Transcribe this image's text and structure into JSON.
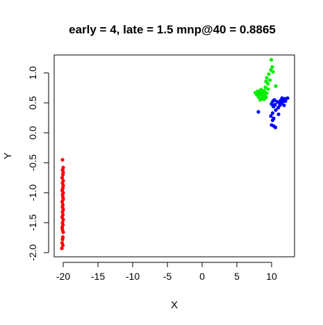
{
  "chart_data": {
    "type": "scatter",
    "title": "early = 4, late = 1.5 mnp@40 = 0.8865",
    "xlabel": "X",
    "ylabel": "Y",
    "xlim": [
      -21.3,
      13.3
    ],
    "ylim": [
      -2.07,
      1.3
    ],
    "x_ticks": [
      -20,
      -15,
      -10,
      -5,
      0,
      5,
      10
    ],
    "x_tick_labels": [
      "-20",
      "-15",
      "-10",
      "-5",
      "0",
      "5",
      "10"
    ],
    "y_ticks": [
      -2.0,
      -1.5,
      -1.0,
      -0.5,
      0.0,
      0.5,
      1.0
    ],
    "y_tick_labels": [
      "-2.0",
      "-1.5",
      "-1.0",
      "-0.5",
      "0.0",
      "0.5",
      "1.0"
    ],
    "grid": false,
    "legend": "none",
    "series": [
      {
        "color": "#ff0000",
        "points": [
          [
            -20.1,
            -0.45
          ],
          [
            -20.0,
            -0.58
          ],
          [
            -20.1,
            -0.62
          ],
          [
            -20.0,
            -0.66
          ],
          [
            -20.05,
            -0.7
          ],
          [
            -20.15,
            -0.75
          ],
          [
            -20.0,
            -0.8
          ],
          [
            -20.1,
            -0.84
          ],
          [
            -20.0,
            -0.88
          ],
          [
            -20.05,
            -0.92
          ],
          [
            -20.15,
            -0.96
          ],
          [
            -20.0,
            -1.0
          ],
          [
            -20.1,
            -1.03
          ],
          [
            -20.05,
            -1.07
          ],
          [
            -20.0,
            -1.11
          ],
          [
            -20.15,
            -1.15
          ],
          [
            -20.05,
            -1.2
          ],
          [
            -20.1,
            -1.24
          ],
          [
            -20.0,
            -1.28
          ],
          [
            -20.1,
            -1.32
          ],
          [
            -20.05,
            -1.37
          ],
          [
            -20.15,
            -1.41
          ],
          [
            -20.0,
            -1.45
          ],
          [
            -20.1,
            -1.5
          ],
          [
            -20.05,
            -1.54
          ],
          [
            -20.15,
            -1.58
          ],
          [
            -20.1,
            -1.62
          ],
          [
            -20.0,
            -1.66
          ],
          [
            -20.05,
            -1.74
          ],
          [
            -20.1,
            -1.78
          ],
          [
            -20.15,
            -1.84
          ],
          [
            -20.05,
            -1.88
          ],
          [
            -20.2,
            -1.93
          ]
        ]
      },
      {
        "color": "#00ee00",
        "points": [
          [
            9.95,
            1.22
          ],
          [
            10.1,
            1.1
          ],
          [
            9.9,
            1.05
          ],
          [
            10.2,
            1.02
          ],
          [
            9.6,
            0.98
          ],
          [
            9.3,
            0.92
          ],
          [
            9.75,
            0.88
          ],
          [
            9.2,
            0.86
          ],
          [
            9.45,
            0.82
          ],
          [
            10.6,
            0.78
          ],
          [
            9.1,
            0.76
          ],
          [
            9.5,
            0.73
          ],
          [
            8.5,
            0.72
          ],
          [
            8.95,
            0.7
          ],
          [
            8.25,
            0.7
          ],
          [
            7.95,
            0.69
          ],
          [
            8.6,
            0.68
          ],
          [
            8.8,
            0.67
          ],
          [
            7.65,
            0.67
          ],
          [
            8.05,
            0.66
          ],
          [
            9.3,
            0.66
          ],
          [
            8.45,
            0.65
          ],
          [
            7.85,
            0.64
          ],
          [
            8.3,
            0.63
          ],
          [
            9.0,
            0.62
          ],
          [
            8.65,
            0.61
          ],
          [
            8.1,
            0.6
          ],
          [
            9.2,
            0.59
          ],
          [
            8.55,
            0.57
          ],
          [
            8.9,
            0.56
          ],
          [
            8.35,
            0.55
          ],
          [
            10.2,
            0.44
          ],
          [
            10.0,
            0.5
          ]
        ]
      },
      {
        "color": "#0000ff",
        "points": [
          [
            8.1,
            0.35
          ],
          [
            10.2,
            0.53
          ],
          [
            10.4,
            0.55
          ],
          [
            11.5,
            0.58
          ],
          [
            11.9,
            0.57
          ],
          [
            12.3,
            0.58
          ],
          [
            11.7,
            0.55
          ],
          [
            11.3,
            0.54
          ],
          [
            12.0,
            0.53
          ],
          [
            10.8,
            0.52
          ],
          [
            11.6,
            0.52
          ],
          [
            11.1,
            0.5
          ],
          [
            11.4,
            0.49
          ],
          [
            10.0,
            0.48
          ],
          [
            10.5,
            0.47
          ],
          [
            11.2,
            0.46
          ],
          [
            11.8,
            0.46
          ],
          [
            10.3,
            0.44
          ],
          [
            10.95,
            0.42
          ],
          [
            10.6,
            0.38
          ],
          [
            10.15,
            0.33
          ],
          [
            11.0,
            0.31
          ],
          [
            9.9,
            0.28
          ],
          [
            10.3,
            0.24
          ],
          [
            10.15,
            0.21
          ],
          [
            10.0,
            0.13
          ],
          [
            10.35,
            0.11
          ],
          [
            10.55,
            0.09
          ]
        ]
      }
    ]
  }
}
